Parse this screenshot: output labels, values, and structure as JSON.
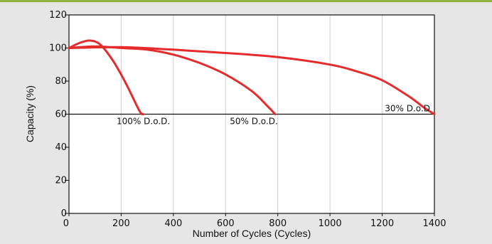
{
  "chart_data": {
    "type": "line",
    "title": "",
    "xlabel": "Number of Cycles (Cycles)",
    "ylabel": "Capacity (%)",
    "xlim": [
      0,
      1400
    ],
    "ylim": [
      0,
      120
    ],
    "x_ticks": [
      0,
      200,
      400,
      600,
      800,
      1000,
      1200,
      1400
    ],
    "y_ticks": [
      0,
      20,
      40,
      60,
      80,
      100,
      120
    ],
    "grid": "vertical",
    "reference_line": {
      "y": 60
    },
    "line_color": "#e52b2b",
    "series": [
      {
        "label": "100% D.o.D.",
        "points": [
          [
            0,
            100
          ],
          [
            40,
            103
          ],
          [
            80,
            104.5
          ],
          [
            120,
            102
          ],
          [
            170,
            92
          ],
          [
            220,
            78
          ],
          [
            270,
            62
          ],
          [
            285,
            60
          ]
        ]
      },
      {
        "label": "50% D.o.D.",
        "points": [
          [
            0,
            100
          ],
          [
            100,
            101
          ],
          [
            200,
            100
          ],
          [
            300,
            99
          ],
          [
            400,
            96
          ],
          [
            500,
            91
          ],
          [
            600,
            84
          ],
          [
            700,
            74
          ],
          [
            760,
            65
          ],
          [
            790,
            60
          ]
        ]
      },
      {
        "label": "30% D.o.D",
        "points": [
          [
            0,
            100
          ],
          [
            200,
            100.5
          ],
          [
            400,
            99
          ],
          [
            600,
            97
          ],
          [
            800,
            94.5
          ],
          [
            1000,
            90
          ],
          [
            1100,
            86
          ],
          [
            1200,
            80.5
          ],
          [
            1300,
            71
          ],
          [
            1360,
            64
          ],
          [
            1400,
            60
          ]
        ]
      }
    ]
  }
}
